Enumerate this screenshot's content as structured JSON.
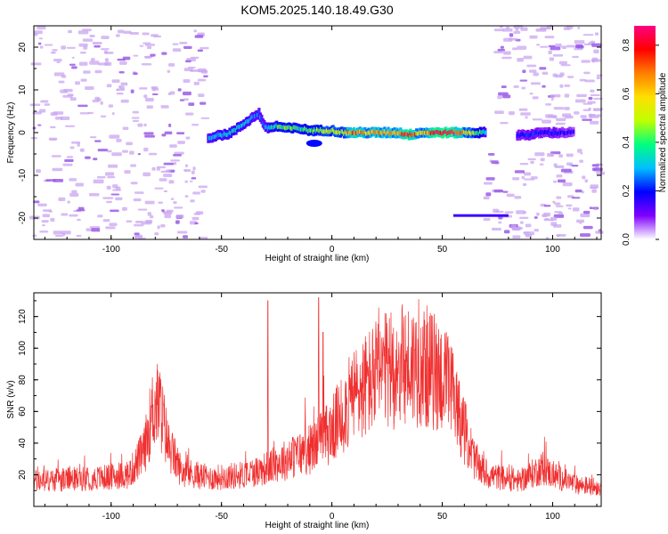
{
  "title": "KOM5.2025.140.18.49.G30",
  "colors": {
    "snr_line": "#f03030",
    "speckle": "#c9a6f0",
    "axis": "#000000"
  },
  "colormap": [
    "#ffffff",
    "#7f00ff",
    "#0000ff",
    "#00bfff",
    "#00ff7f",
    "#bfff00",
    "#ffdf00",
    "#ff7f00",
    "#ff0000",
    "#ff0080"
  ],
  "chart_data": [
    {
      "type": "heatmap",
      "xlabel": "Height of straight line (km)",
      "ylabel": "Frequency (Hz)",
      "xlim": [
        -135,
        122
      ],
      "ylim": [
        -25,
        25
      ],
      "xticks": [
        -100,
        -50,
        0,
        50,
        100
      ],
      "yticks": [
        -20,
        -10,
        0,
        10,
        20
      ],
      "colorbar": {
        "label": "Normalized spectral amplitude",
        "range": [
          0.0,
          0.88
        ],
        "ticks": [
          0.0,
          0.2,
          0.4,
          0.6,
          0.8
        ]
      },
      "ridge": [
        {
          "x": -56,
          "f": -1.5,
          "a": 0.28
        },
        {
          "x": -52,
          "f": -0.5,
          "a": 0.3
        },
        {
          "x": -48,
          "f": -0.5,
          "a": 0.32
        },
        {
          "x": -44,
          "f": 0.5,
          "a": 0.32
        },
        {
          "x": -40,
          "f": 2.0,
          "a": 0.3
        },
        {
          "x": -36,
          "f": 3.5,
          "a": 0.28
        },
        {
          "x": -33,
          "f": 4.5,
          "a": 0.25
        },
        {
          "x": -30,
          "f": 1.0,
          "a": 0.3
        },
        {
          "x": -25,
          "f": 1.5,
          "a": 0.4
        },
        {
          "x": -20,
          "f": 1.0,
          "a": 0.45
        },
        {
          "x": -15,
          "f": 1.0,
          "a": 0.4
        },
        {
          "x": -10,
          "f": 0.5,
          "a": 0.42
        },
        {
          "x": -5,
          "f": 0.5,
          "a": 0.45
        },
        {
          "x": 0,
          "f": 0.5,
          "a": 0.5
        },
        {
          "x": 5,
          "f": 0.0,
          "a": 0.55
        },
        {
          "x": 10,
          "f": 0.0,
          "a": 0.75
        },
        {
          "x": 15,
          "f": 0.0,
          "a": 0.6
        },
        {
          "x": 20,
          "f": 0.0,
          "a": 0.65
        },
        {
          "x": 25,
          "f": 0.0,
          "a": 0.6
        },
        {
          "x": 30,
          "f": 0.0,
          "a": 0.62
        },
        {
          "x": 35,
          "f": -0.5,
          "a": 0.85
        },
        {
          "x": 40,
          "f": 0.0,
          "a": 0.55
        },
        {
          "x": 45,
          "f": 0.0,
          "a": 0.7
        },
        {
          "x": 50,
          "f": 0.0,
          "a": 0.88
        },
        {
          "x": 55,
          "f": 0.0,
          "a": 0.8
        },
        {
          "x": 60,
          "f": 0.0,
          "a": 0.6
        },
        {
          "x": 65,
          "f": 0.0,
          "a": 0.45
        },
        {
          "x": 70,
          "f": 0.0,
          "a": 0.3
        },
        {
          "x": 84,
          "f": -0.5,
          "a": 0.18
        },
        {
          "x": 90,
          "f": -0.5,
          "a": 0.22
        },
        {
          "x": 95,
          "f": 0.0,
          "a": 0.2
        },
        {
          "x": 100,
          "f": 0.0,
          "a": 0.2
        },
        {
          "x": 105,
          "f": 0.0,
          "a": 0.18
        },
        {
          "x": 110,
          "f": 0.0,
          "a": 0.15
        }
      ],
      "secondary_line": {
        "x_start": 55,
        "x_end": 80,
        "f": -19.5,
        "a": 0.15
      },
      "lower_blob": {
        "x": -8,
        "f": -2.5,
        "a": 0.2
      }
    },
    {
      "type": "line",
      "xlabel": "Height of straight line (km)",
      "ylabel": "SNR (v/v)",
      "xlim": [
        -135,
        122
      ],
      "ylim": [
        0,
        135
      ],
      "xticks": [
        -100,
        -50,
        0,
        50,
        100
      ],
      "yticks": [
        20,
        40,
        60,
        80,
        100,
        120
      ],
      "envelope": [
        {
          "x": -135,
          "y": 16
        },
        {
          "x": -120,
          "y": 17
        },
        {
          "x": -105,
          "y": 18
        },
        {
          "x": -92,
          "y": 20
        },
        {
          "x": -85,
          "y": 35
        },
        {
          "x": -81,
          "y": 62
        },
        {
          "x": -78,
          "y": 64
        },
        {
          "x": -74,
          "y": 38
        },
        {
          "x": -68,
          "y": 22
        },
        {
          "x": -55,
          "y": 18
        },
        {
          "x": -40,
          "y": 20
        },
        {
          "x": -30,
          "y": 24
        },
        {
          "x": -20,
          "y": 30
        },
        {
          "x": -10,
          "y": 36
        },
        {
          "x": 0,
          "y": 48
        },
        {
          "x": 10,
          "y": 70
        },
        {
          "x": 20,
          "y": 82
        },
        {
          "x": 30,
          "y": 88
        },
        {
          "x": 40,
          "y": 90
        },
        {
          "x": 50,
          "y": 82
        },
        {
          "x": 55,
          "y": 70
        },
        {
          "x": 60,
          "y": 48
        },
        {
          "x": 65,
          "y": 28
        },
        {
          "x": 70,
          "y": 20
        },
        {
          "x": 85,
          "y": 16
        },
        {
          "x": 95,
          "y": 24
        },
        {
          "x": 100,
          "y": 20
        },
        {
          "x": 110,
          "y": 14
        },
        {
          "x": 122,
          "y": 12
        }
      ],
      "spikes": [
        {
          "x": -29,
          "y": 130
        },
        {
          "x": -6,
          "y": 132
        },
        {
          "x": -4,
          "y": 110
        }
      ]
    }
  ]
}
